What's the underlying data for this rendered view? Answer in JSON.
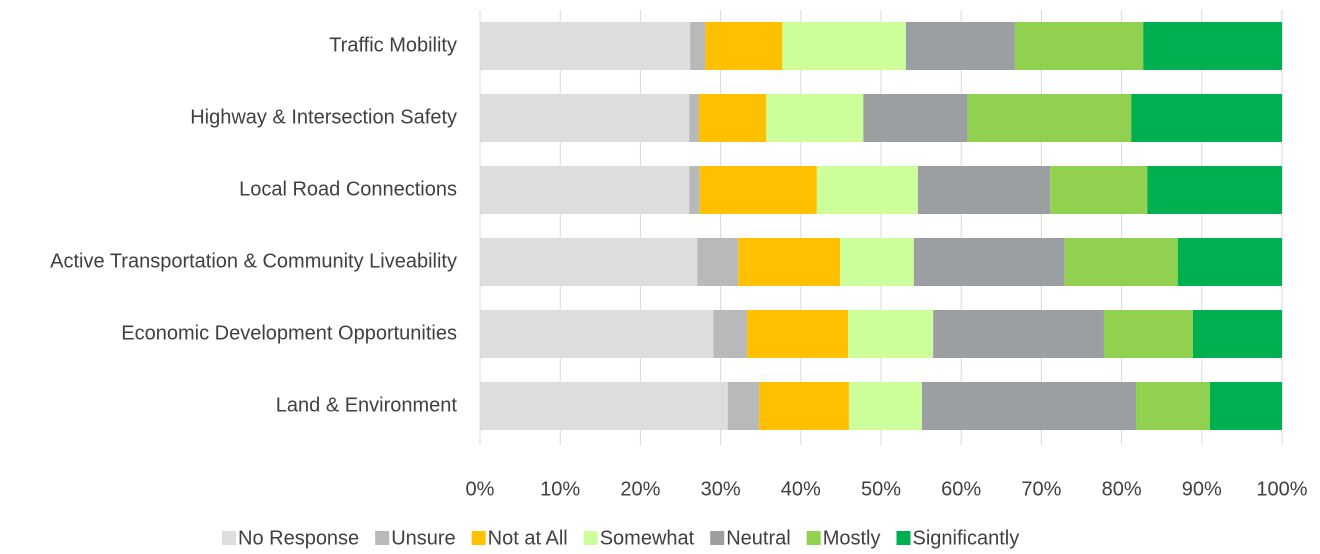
{
  "chart_data": {
    "type": "stacked-bar-horizontal",
    "categories": [
      "Traffic Mobility",
      "Highway & Intersection Safety",
      "Local Road Connections",
      "Active Transportation & Community Liveability",
      "Economic Development Opportunities",
      "Land & Environment"
    ],
    "series": [
      {
        "name": "No Response",
        "color": "#dcdddf",
        "values": [
          26.2,
          26.1,
          26.1,
          27.1,
          29.1,
          30.9
        ]
      },
      {
        "name": "Unsure",
        "color": "#b7b9bb",
        "values": [
          1.9,
          1.2,
          1.3,
          5.1,
          4.2,
          3.9
        ]
      },
      {
        "name": "Not at All",
        "color": "#ffc000",
        "values": [
          9.6,
          8.4,
          14.6,
          12.7,
          12.6,
          11.2
        ]
      },
      {
        "name": "Somewhat",
        "color": "#ccff99",
        "values": [
          15.4,
          12.1,
          12.6,
          9.2,
          10.6,
          9.1
        ]
      },
      {
        "name": "Neutral",
        "color": "#9b9fa1",
        "values": [
          13.6,
          13.0,
          16.5,
          18.8,
          21.3,
          26.7
        ]
      },
      {
        "name": "Mostly",
        "color": "#92d050",
        "values": [
          16.0,
          20.4,
          12.1,
          14.1,
          11.1,
          9.2
        ]
      },
      {
        "name": "Significantly",
        "color": "#00b050",
        "values": [
          17.3,
          18.8,
          16.8,
          13.0,
          11.1,
          9.0
        ]
      }
    ],
    "xlim": [
      0,
      100
    ],
    "xticks": [
      {
        "value": 0,
        "label": "0%"
      },
      {
        "value": 10,
        "label": "10%"
      },
      {
        "value": 20,
        "label": "20%"
      },
      {
        "value": 30,
        "label": "30%"
      },
      {
        "value": 40,
        "label": "40%"
      },
      {
        "value": 50,
        "label": "50%"
      },
      {
        "value": 60,
        "label": "60%"
      },
      {
        "value": 70,
        "label": "70%"
      },
      {
        "value": 80,
        "label": "80%"
      },
      {
        "value": 90,
        "label": "90%"
      },
      {
        "value": 100,
        "label": "100%"
      }
    ],
    "grid": true,
    "legend": "bottom"
  }
}
